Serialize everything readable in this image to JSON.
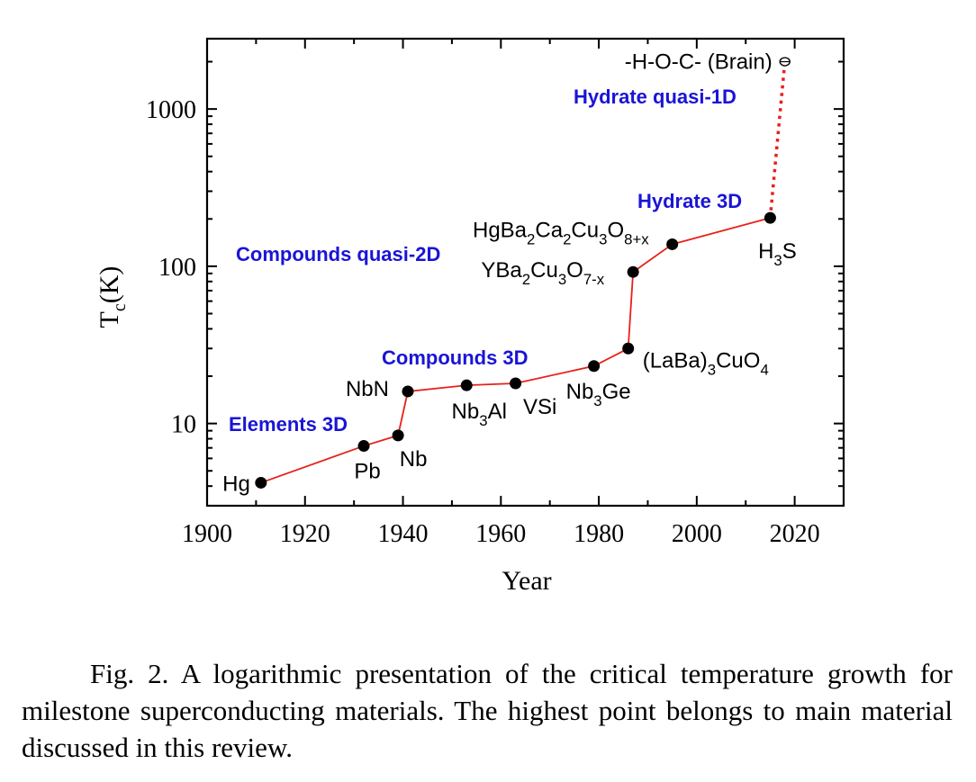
{
  "chart_data": {
    "type": "line",
    "xlabel": "Year",
    "ylabel": "T_c(K)",
    "xlim": [
      1900,
      2030
    ],
    "ylim": [
      3,
      2800
    ],
    "yscale": "log",
    "xticks": [
      "1900",
      "1920",
      "1940",
      "1960",
      "1980",
      "2000",
      "2020"
    ],
    "yticks": [
      "10",
      "100",
      "1000"
    ],
    "grid": false,
    "line_color": "#e8201a",
    "marker_color": "#000000",
    "points": [
      {
        "x": 1911,
        "y": 4.2,
        "label": "Hg"
      },
      {
        "x": 1932,
        "y": 7.2,
        "label": "Pb"
      },
      {
        "x": 1939,
        "y": 8.4,
        "label": "Nb"
      },
      {
        "x": 1941,
        "y": 16,
        "label": "NbN"
      },
      {
        "x": 1953,
        "y": 17.5,
        "label": "Nb3Al"
      },
      {
        "x": 1963,
        "y": 18,
        "label": "VSi"
      },
      {
        "x": 1979,
        "y": 23.2,
        "label": "Nb3Ge"
      },
      {
        "x": 1986,
        "y": 30,
        "label": "(LaBa)3CuO4"
      },
      {
        "x": 1987,
        "y": 92,
        "label": "YBa2Cu3O7-x"
      },
      {
        "x": 1995,
        "y": 138,
        "label": "HgBa2Ca2Cu3O8+x"
      },
      {
        "x": 2015,
        "y": 203,
        "label": "H3S"
      }
    ],
    "extrapolated": {
      "x": 2018,
      "y": 2000,
      "label": "-H-O-C- (Brain)",
      "line_color": "#e8201a",
      "style": "dotted"
    },
    "annotations": [
      {
        "text": "Elements 3D",
        "color": "#1a14d6"
      },
      {
        "text": "Compounds 3D",
        "color": "#1a14d6"
      },
      {
        "text": "Compounds quasi-2D",
        "color": "#1a14d6"
      },
      {
        "text": "Hydrate 3D",
        "color": "#1a14d6"
      },
      {
        "text": "Hydrate quasi-1D",
        "color": "#1a14d6"
      }
    ]
  },
  "caption": "Fig. 2. A logarithmic presentation of the critical temperature growth for milestone superconducting materials. The highest point belongs to main material discussed in this review."
}
